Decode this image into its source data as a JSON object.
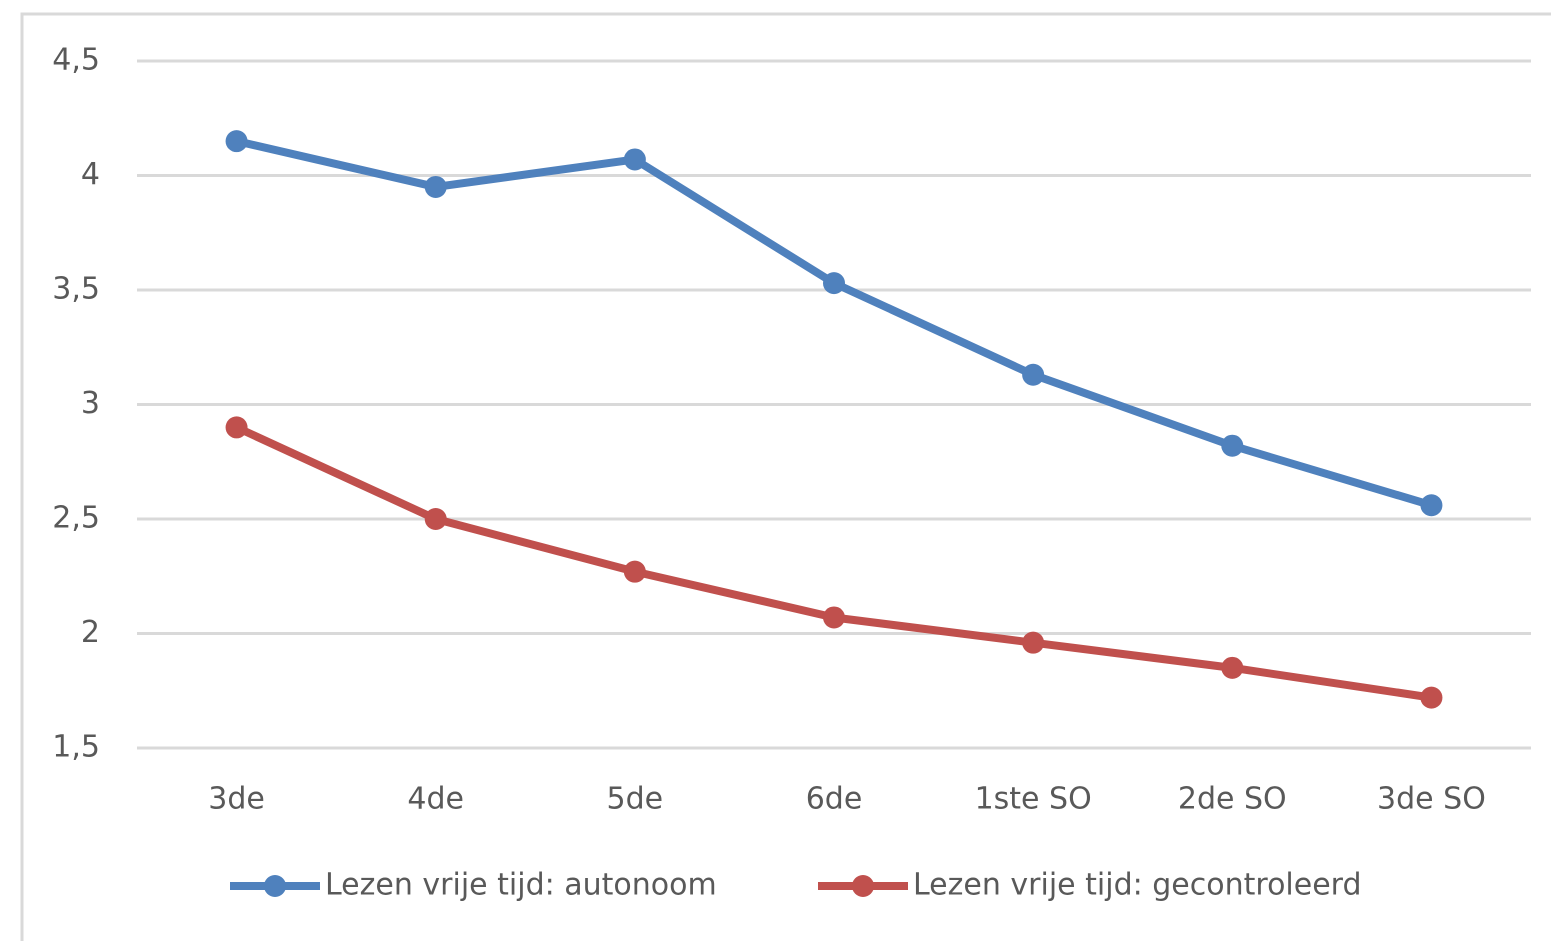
{
  "chart_data": {
    "type": "line",
    "categories": [
      "3de",
      "4de",
      "5de",
      "6de",
      "1ste SO",
      "2de SO",
      "3de SO"
    ],
    "series": [
      {
        "name": "Lezen vrije tijd: autonoom",
        "color": "#4f81bd",
        "values": [
          4.15,
          3.95,
          4.07,
          3.53,
          3.13,
          2.82,
          2.56
        ]
      },
      {
        "name": "Lezen vrije tijd: gecontroleerd",
        "color": "#c0504d",
        "values": [
          2.9,
          2.5,
          2.27,
          2.07,
          1.96,
          1.85,
          1.72
        ]
      }
    ],
    "ylim": [
      1.5,
      4.5
    ],
    "yticks": [
      {
        "value": 1.5,
        "label": "1,5"
      },
      2,
      {
        "value": 2.5,
        "label": "2,5"
      },
      3,
      {
        "value": 3.5,
        "label": "3,5"
      },
      4,
      {
        "value": 4.5,
        "label": "4,5"
      }
    ],
    "grid": true,
    "legend": "bottom"
  }
}
